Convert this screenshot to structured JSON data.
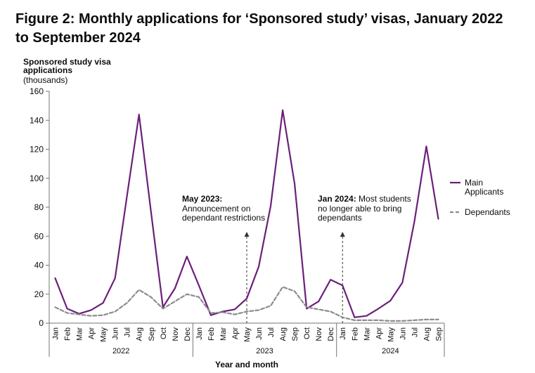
{
  "figure": {
    "title": "Figure 2: Monthly applications for ‘Sponsored study’ visas, January 2022 to September 2024"
  },
  "colors": {
    "main": "#6b1f7b",
    "dependants": "#8c8c8c",
    "axis": "#767676"
  },
  "chart_data": {
    "type": "line",
    "ylabel_lines": [
      "Sponsored study visa",
      "applications"
    ],
    "ylabel_unit": "(thousands)",
    "xlabel": "Year and month",
    "ylim": [
      0,
      160
    ],
    "yticks": [
      0,
      20,
      40,
      60,
      80,
      100,
      120,
      140,
      160
    ],
    "grid": false,
    "legend_position": "right",
    "x": [
      "Jan",
      "Feb",
      "Mar",
      "Apr",
      "May",
      "Jun",
      "Jul",
      "Aug",
      "Sep",
      "Oct",
      "Nov",
      "Dec",
      "Jan",
      "Feb",
      "Mar",
      "Apr",
      "May",
      "Jun",
      "Jul",
      "Aug",
      "Sep",
      "Oct",
      "Nov",
      "Dec",
      "Jan",
      "Feb",
      "Mar",
      "Apr",
      "May",
      "Jun",
      "Jul",
      "Aug",
      "Sep"
    ],
    "years": [
      {
        "label": "2022",
        "start": 0,
        "end": 11
      },
      {
        "label": "2023",
        "start": 12,
        "end": 23
      },
      {
        "label": "2024",
        "start": 24,
        "end": 32
      }
    ],
    "series": [
      {
        "name": "Main Applicants",
        "name_lines": [
          "Main",
          "Applicants"
        ],
        "style": "solid",
        "values": [
          31,
          10,
          6.5,
          9,
          14,
          31,
          88,
          144,
          77,
          11,
          24,
          46,
          26,
          5.5,
          8,
          9.5,
          17,
          39,
          81,
          147,
          96,
          10,
          15,
          30,
          26,
          4,
          5,
          10,
          15.5,
          28,
          70,
          122,
          72
        ]
      },
      {
        "name": "Dependants",
        "name_lines": [
          "Dependants"
        ],
        "style": "dashed",
        "values": [
          11,
          7,
          6,
          5,
          5.5,
          8,
          14,
          23,
          18,
          10,
          15,
          20,
          18,
          7,
          7.5,
          6,
          8,
          9,
          12,
          25,
          22,
          11,
          9.5,
          8,
          4,
          2,
          2,
          2,
          1.5,
          1.5,
          2,
          2.5,
          2.5
        ]
      }
    ],
    "annotations": [
      {
        "index": 16,
        "bold": "May 2023:",
        "lines": [
          "Announcement on",
          "dependant restrictions"
        ]
      },
      {
        "index": 24,
        "bold": "Jan 2024:",
        "first_rest": " Most students",
        "lines": [
          "no longer able to bring",
          "dependants"
        ]
      }
    ]
  }
}
